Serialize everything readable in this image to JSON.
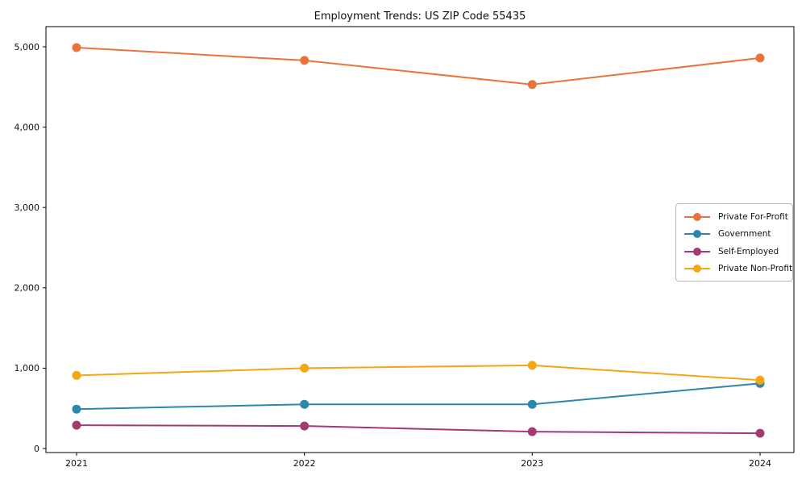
{
  "title": "Employment Trends: US ZIP Code 55435",
  "colors": {
    "axis": "#000000",
    "text": "#111111",
    "legend_border": "#b7b7b7",
    "background": "#ffffff"
  },
  "chart_data": {
    "type": "line",
    "title": "Employment Trends: US ZIP Code 55435",
    "xlabel": "",
    "ylabel": "",
    "x": [
      2021,
      2022,
      2023,
      2024
    ],
    "x_tick_labels": [
      "2021",
      "2022",
      "2023",
      "2024"
    ],
    "y_ticks": [
      0,
      1000,
      2000,
      3000,
      4000,
      5000
    ],
    "y_tick_labels": [
      "0",
      "1,000",
      "2,000",
      "3,000",
      "4,000",
      "5,000"
    ],
    "ylim": [
      0,
      5000
    ],
    "grid": false,
    "marker": "circle",
    "legend_position": "right-middle",
    "series": [
      {
        "name": "Private For-Profit",
        "color": "#E8743B",
        "values": [
          4990,
          4830,
          4530,
          4860
        ]
      },
      {
        "name": "Government",
        "color": "#2E86AB",
        "values": [
          490,
          550,
          550,
          810
        ]
      },
      {
        "name": "Self-Employed",
        "color": "#A23B72",
        "values": [
          290,
          280,
          210,
          190
        ]
      },
      {
        "name": "Private Non-Profit",
        "color": "#F3A712",
        "values": [
          910,
          1000,
          1035,
          850
        ]
      }
    ]
  }
}
